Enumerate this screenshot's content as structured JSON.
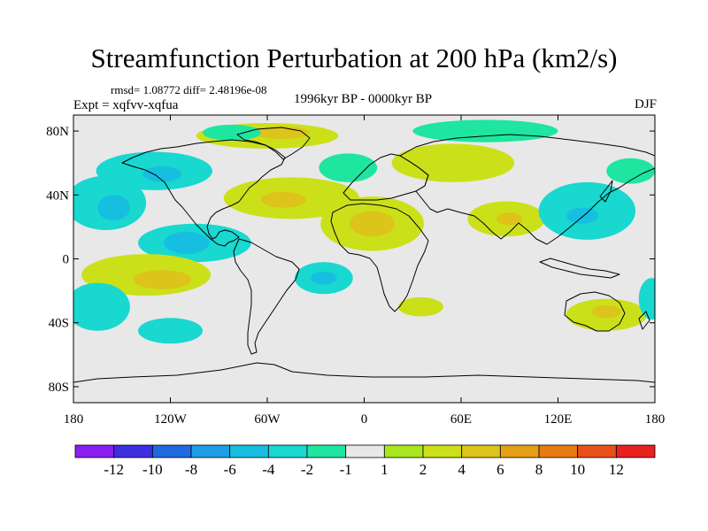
{
  "chart_data": {
    "type": "contour-map",
    "title": "Streamfunction Perturbation at 200 hPa (km2/s)",
    "stats_text": "rmsd= 1.08772 diff= 2.48196e-08",
    "experiment_text": "Expt = xqfvv-xqfua",
    "period_text": "1996kyr BP - 0000kyr BP",
    "season": "DJF",
    "lon_range": [
      -180,
      180
    ],
    "lat_range": [
      -90,
      90
    ],
    "x_ticks": [
      {
        "value": -180,
        "label": "180"
      },
      {
        "value": -120,
        "label": "120W"
      },
      {
        "value": -60,
        "label": "60W"
      },
      {
        "value": 0,
        "label": "0"
      },
      {
        "value": 60,
        "label": "60E"
      },
      {
        "value": 120,
        "label": "120E"
      },
      {
        "value": 180,
        "label": "180"
      }
    ],
    "y_ticks": [
      {
        "value": 80,
        "label": "80N"
      },
      {
        "value": 40,
        "label": "40N"
      },
      {
        "value": 0,
        "label": "0"
      },
      {
        "value": -40,
        "label": "40S"
      },
      {
        "value": -80,
        "label": "80S"
      }
    ],
    "colorbar": {
      "colors": [
        "#8b1ff0",
        "#3d2ee0",
        "#1f6ae0",
        "#1f9ee8",
        "#16bfe0",
        "#18d8d0",
        "#1ee6a0",
        "#e8e8e8",
        "#a8e61e",
        "#cce01a",
        "#dcc41a",
        "#e6a016",
        "#e87a12",
        "#e8501a",
        "#e8201e"
      ],
      "labels": [
        "-12",
        "-10",
        "-8",
        "-6",
        "-4",
        "-2",
        "-1",
        "1",
        "2",
        "4",
        "6",
        "8",
        "10",
        "12"
      ]
    },
    "anomaly_regions": [
      {
        "name": "arctic-greenland-positive",
        "lon": -60,
        "lat": 77,
        "rlon": 44,
        "rlat": 8,
        "level": 2
      },
      {
        "name": "greenland-core",
        "lon": -52,
        "lat": 79,
        "rlon": 18,
        "rlat": 4,
        "level": 4
      },
      {
        "name": "greenland-green",
        "lon": -82,
        "lat": 79,
        "rlon": 18,
        "rlat": 5,
        "level": -1
      },
      {
        "name": "siberia-negative",
        "lon": 75,
        "lat": 80,
        "rlon": 45,
        "rlat": 7,
        "level": -1
      },
      {
        "name": "north-pacific-negative",
        "lon": -130,
        "lat": 55,
        "rlon": 36,
        "rlat": 12,
        "level": -2
      },
      {
        "name": "north-pacific-core",
        "lon": -125,
        "lat": 53,
        "rlon": 12,
        "rlat": 5,
        "level": -4
      },
      {
        "name": "subtropical-pacific-negative",
        "lon": -160,
        "lat": 35,
        "rlon": 25,
        "rlat": 17,
        "level": -2
      },
      {
        "name": "subtropical-pacific-core",
        "lon": -155,
        "lat": 32,
        "rlon": 10,
        "rlat": 8,
        "level": -4
      },
      {
        "name": "tropical-pacific-negative",
        "lon": -105,
        "lat": 10,
        "rlon": 35,
        "rlat": 12,
        "level": -2
      },
      {
        "name": "tropical-pacific-core",
        "lon": -110,
        "lat": 10,
        "rlon": 14,
        "rlat": 7,
        "level": -4
      },
      {
        "name": "atlantic-positive-band",
        "lon": -45,
        "lat": 38,
        "rlon": 42,
        "rlat": 13,
        "level": 2
      },
      {
        "name": "atlantic-positive-core",
        "lon": -50,
        "lat": 37,
        "rlon": 14,
        "rlat": 5,
        "level": 4
      },
      {
        "name": "north-africa-positive",
        "lon": 5,
        "lat": 22,
        "rlon": 32,
        "rlat": 17,
        "level": 2
      },
      {
        "name": "north-africa-core",
        "lon": 5,
        "lat": 22,
        "rlon": 14,
        "rlat": 8,
        "level": 4
      },
      {
        "name": "europe-negative",
        "lon": -10,
        "lat": 57,
        "rlon": 18,
        "rlat": 9,
        "level": -1
      },
      {
        "name": "mideast-positive",
        "lon": 55,
        "lat": 60,
        "rlon": 38,
        "rlat": 12,
        "level": 2
      },
      {
        "name": "india-positive",
        "lon": 88,
        "lat": 25,
        "rlon": 24,
        "rlat": 11,
        "level": 2
      },
      {
        "name": "india-core",
        "lon": 90,
        "lat": 25,
        "rlon": 8,
        "rlat": 4,
        "level": 4
      },
      {
        "name": "east-asia-negative",
        "lon": 138,
        "lat": 30,
        "rlon": 30,
        "rlat": 18,
        "level": -2
      },
      {
        "name": "east-asia-core",
        "lon": 135,
        "lat": 27,
        "rlon": 10,
        "rlat": 5,
        "level": -4
      },
      {
        "name": "east-asia-green",
        "lon": 165,
        "lat": 55,
        "rlon": 15,
        "rlat": 8,
        "level": -1
      },
      {
        "name": "south-pacific-positive",
        "lon": -135,
        "lat": -10,
        "rlon": 40,
        "rlat": 13,
        "level": 2
      },
      {
        "name": "south-pacific-core",
        "lon": -125,
        "lat": -13,
        "rlon": 18,
        "rlat": 6,
        "level": 4
      },
      {
        "name": "south-atlantic-negative",
        "lon": -25,
        "lat": -12,
        "rlon": 18,
        "rlat": 10,
        "level": -2
      },
      {
        "name": "south-atlantic-core",
        "lon": -25,
        "lat": -12,
        "rlon": 8,
        "rlat": 4,
        "level": -4
      },
      {
        "name": "south-pacific-west-negative",
        "lon": -165,
        "lat": -30,
        "rlon": 20,
        "rlat": 15,
        "level": -2
      },
      {
        "name": "southeast-pacific-negative",
        "lon": -120,
        "lat": -45,
        "rlon": 20,
        "rlat": 8,
        "level": -2
      },
      {
        "name": "south-africa-positive",
        "lon": 35,
        "lat": -30,
        "rlon": 14,
        "rlat": 6,
        "level": 2
      },
      {
        "name": "australia-positive",
        "lon": 150,
        "lat": -35,
        "rlon": 25,
        "rlat": 10,
        "level": 2
      },
      {
        "name": "australia-core",
        "lon": 150,
        "lat": -33,
        "rlon": 9,
        "rlat": 4,
        "level": 4
      },
      {
        "name": "southwest-pacific-negative",
        "lon": 178,
        "lat": -25,
        "rlon": 8,
        "rlat": 13,
        "level": -2
      }
    ]
  }
}
